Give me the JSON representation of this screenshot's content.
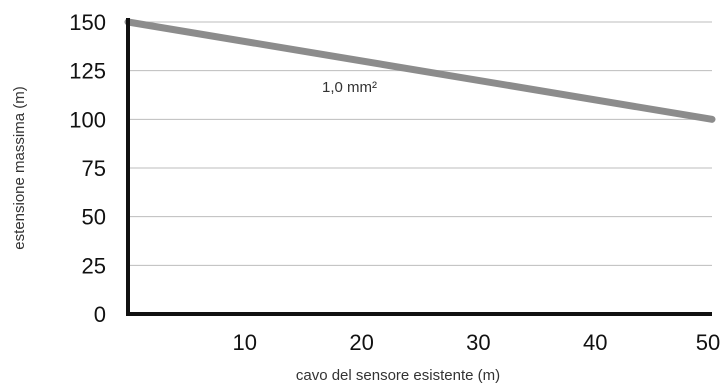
{
  "chart_data": {
    "type": "line",
    "x": [
      0,
      50
    ],
    "series": [
      {
        "name": "1,0 mm²",
        "values": [
          150,
          100
        ],
        "color": "#8c8c8c"
      }
    ],
    "xlabel": "cavo del sensore esistente (m)",
    "ylabel": "estensione massima   (m)",
    "x_ticks": [
      10,
      20,
      30,
      40,
      50
    ],
    "x_tick_labels": [
      "10",
      "20",
      "30",
      "40",
      "50"
    ],
    "y_ticks": [
      0,
      25,
      50,
      75,
      100,
      125,
      150
    ],
    "y_tick_labels": [
      "0",
      "25",
      "50",
      "75",
      "100",
      "125",
      "150"
    ],
    "xlim": [
      0,
      50
    ],
    "ylim": [
      0,
      150
    ],
    "grid": "horizontal",
    "colors": {
      "axis": "#111111",
      "grid": "#bdbdbd",
      "line": "#8c8c8c"
    }
  }
}
